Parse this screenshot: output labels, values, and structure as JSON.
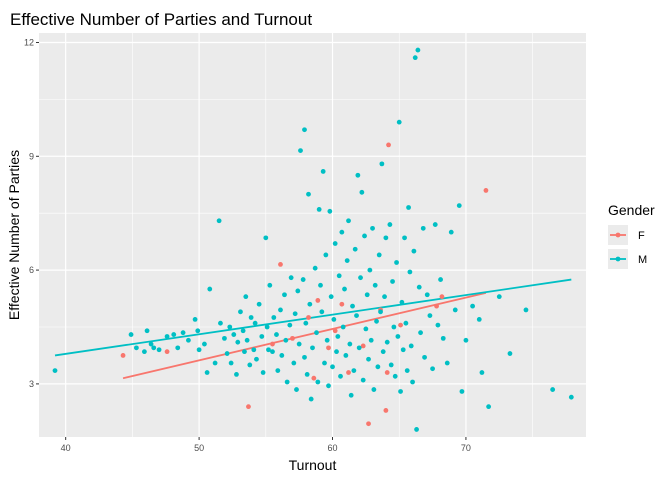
{
  "chart_data": {
    "type": "scatter",
    "title": "Effective Number of Parties and Turnout",
    "xlabel": "Turnout",
    "ylabel": "Effective Number of Parties",
    "xlim": [
      38,
      79
    ],
    "ylim": [
      1.6,
      12.25
    ],
    "x_ticks": [
      40,
      50,
      60,
      70
    ],
    "y_ticks": [
      3,
      6,
      9,
      12
    ],
    "grid": true,
    "legend": {
      "title": "Gender",
      "position": "right"
    },
    "series": [
      {
        "name": "F",
        "color": "#F8766D",
        "points": [
          [
            44.3,
            3.75
          ],
          [
            47.6,
            3.85
          ],
          [
            53.7,
            2.4
          ],
          [
            55.5,
            4.05
          ],
          [
            56.1,
            6.15
          ],
          [
            57.0,
            4.2
          ],
          [
            58.2,
            4.75
          ],
          [
            58.6,
            3.15
          ],
          [
            58.9,
            5.2
          ],
          [
            59.7,
            3.95
          ],
          [
            60.2,
            4.4
          ],
          [
            60.7,
            5.1
          ],
          [
            61.2,
            3.3
          ],
          [
            62.3,
            4.0
          ],
          [
            62.7,
            1.95
          ],
          [
            63.6,
            4.95
          ],
          [
            64.0,
            2.3
          ],
          [
            64.1,
            3.3
          ],
          [
            64.2,
            9.3
          ],
          [
            65.1,
            4.55
          ],
          [
            67.8,
            5.05
          ],
          [
            68.2,
            5.3
          ],
          [
            71.5,
            8.1
          ]
        ],
        "trend": [
          [
            44.3,
            3.15
          ],
          [
            71.5,
            5.4
          ]
        ]
      },
      {
        "name": "M",
        "color": "#00BFC4",
        "points": [
          [
            39.2,
            3.35
          ],
          [
            44.9,
            4.3
          ],
          [
            45.3,
            3.95
          ],
          [
            45.9,
            3.85
          ],
          [
            46.1,
            4.4
          ],
          [
            46.4,
            4.05
          ],
          [
            46.6,
            3.95
          ],
          [
            47.0,
            3.9
          ],
          [
            47.6,
            4.25
          ],
          [
            48.1,
            4.3
          ],
          [
            48.4,
            3.95
          ],
          [
            48.8,
            4.35
          ],
          [
            49.2,
            4.15
          ],
          [
            49.7,
            4.7
          ],
          [
            49.9,
            4.4
          ],
          [
            50.0,
            3.9
          ],
          [
            50.4,
            4.05
          ],
          [
            50.6,
            3.3
          ],
          [
            50.8,
            5.5
          ],
          [
            51.2,
            3.55
          ],
          [
            51.5,
            7.3
          ],
          [
            51.6,
            4.6
          ],
          [
            51.9,
            4.2
          ],
          [
            52.1,
            3.8
          ],
          [
            52.3,
            4.5
          ],
          [
            52.4,
            3.55
          ],
          [
            52.6,
            4.3
          ],
          [
            52.8,
            3.25
          ],
          [
            52.9,
            4.1
          ],
          [
            53.1,
            4.9
          ],
          [
            53.3,
            4.4
          ],
          [
            53.4,
            3.85
          ],
          [
            53.5,
            5.3
          ],
          [
            53.6,
            4.15
          ],
          [
            53.8,
            3.5
          ],
          [
            53.9,
            4.75
          ],
          [
            54.1,
            3.9
          ],
          [
            54.2,
            4.6
          ],
          [
            54.3,
            3.65
          ],
          [
            54.5,
            5.1
          ],
          [
            54.7,
            4.25
          ],
          [
            54.8,
            3.3
          ],
          [
            55.0,
            6.85
          ],
          [
            55.1,
            4.5
          ],
          [
            55.2,
            3.9
          ],
          [
            55.3,
            5.6
          ],
          [
            55.5,
            3.85
          ],
          [
            55.6,
            4.75
          ],
          [
            55.8,
            4.3
          ],
          [
            55.9,
            3.35
          ],
          [
            56.1,
            4.95
          ],
          [
            56.2,
            3.75
          ],
          [
            56.4,
            5.35
          ],
          [
            56.5,
            4.15
          ],
          [
            56.6,
            3.05
          ],
          [
            56.8,
            4.55
          ],
          [
            56.9,
            5.8
          ],
          [
            57.1,
            3.55
          ],
          [
            57.2,
            4.85
          ],
          [
            57.3,
            2.85
          ],
          [
            57.4,
            5.45
          ],
          [
            57.5,
            4.05
          ],
          [
            57.6,
            9.15
          ],
          [
            57.8,
            5.75
          ],
          [
            57.9,
            9.7
          ],
          [
            57.9,
            3.7
          ],
          [
            58.0,
            4.6
          ],
          [
            58.1,
            3.25
          ],
          [
            58.2,
            8.0
          ],
          [
            58.3,
            5.1
          ],
          [
            58.4,
            2.6
          ],
          [
            58.5,
            3.95
          ],
          [
            58.7,
            6.05
          ],
          [
            58.8,
            4.35
          ],
          [
            58.9,
            3.05
          ],
          [
            59.0,
            7.6
          ],
          [
            59.1,
            5.6
          ],
          [
            59.2,
            4.9
          ],
          [
            59.3,
            8.6
          ],
          [
            59.4,
            3.55
          ],
          [
            59.5,
            6.4
          ],
          [
            59.6,
            4.15
          ],
          [
            59.7,
            2.95
          ],
          [
            59.8,
            7.55
          ],
          [
            59.9,
            5.3
          ],
          [
            60.0,
            3.45
          ],
          [
            60.1,
            4.7
          ],
          [
            60.2,
            6.7
          ],
          [
            60.3,
            3.85
          ],
          [
            60.4,
            4.25
          ],
          [
            60.5,
            5.85
          ],
          [
            60.6,
            3.2
          ],
          [
            60.7,
            7.0
          ],
          [
            60.8,
            4.5
          ],
          [
            60.9,
            5.5
          ],
          [
            61.0,
            3.75
          ],
          [
            61.1,
            6.25
          ],
          [
            61.2,
            7.3
          ],
          [
            61.3,
            4.05
          ],
          [
            61.4,
            2.7
          ],
          [
            61.5,
            5.05
          ],
          [
            61.6,
            3.35
          ],
          [
            61.7,
            6.55
          ],
          [
            61.8,
            4.8
          ],
          [
            61.9,
            8.5
          ],
          [
            62.0,
            3.95
          ],
          [
            62.1,
            5.8
          ],
          [
            62.2,
            8.05
          ],
          [
            62.3,
            3.1
          ],
          [
            62.4,
            6.9
          ],
          [
            62.5,
            4.45
          ],
          [
            62.6,
            5.35
          ],
          [
            62.7,
            3.65
          ],
          [
            62.8,
            6.0
          ],
          [
            62.9,
            4.15
          ],
          [
            63.0,
            7.1
          ],
          [
            63.1,
            2.85
          ],
          [
            63.2,
            5.6
          ],
          [
            63.3,
            4.65
          ],
          [
            63.4,
            3.45
          ],
          [
            63.5,
            6.4
          ],
          [
            63.6,
            4.9
          ],
          [
            63.7,
            8.8
          ],
          [
            63.8,
            3.85
          ],
          [
            63.9,
            5.3
          ],
          [
            64.0,
            6.85
          ],
          [
            64.1,
            4.1
          ],
          [
            64.3,
            7.2
          ],
          [
            64.4,
            3.5
          ],
          [
            64.5,
            5.7
          ],
          [
            64.6,
            4.5
          ],
          [
            64.7,
            3.2
          ],
          [
            64.8,
            6.2
          ],
          [
            64.9,
            4.25
          ],
          [
            65.0,
            9.9
          ],
          [
            65.1,
            2.8
          ],
          [
            65.2,
            5.15
          ],
          [
            65.3,
            3.9
          ],
          [
            65.4,
            6.85
          ],
          [
            65.5,
            4.6
          ],
          [
            65.6,
            3.35
          ],
          [
            65.7,
            7.65
          ],
          [
            65.8,
            5.95
          ],
          [
            65.9,
            4.0
          ],
          [
            66.0,
            3.05
          ],
          [
            66.1,
            6.5
          ],
          [
            66.2,
            11.6
          ],
          [
            66.3,
            1.8
          ],
          [
            66.4,
            11.8
          ],
          [
            66.5,
            5.55
          ],
          [
            66.6,
            4.35
          ],
          [
            66.8,
            7.1
          ],
          [
            66.9,
            3.7
          ],
          [
            67.1,
            5.35
          ],
          [
            67.3,
            4.8
          ],
          [
            67.5,
            3.4
          ],
          [
            67.7,
            7.2
          ],
          [
            67.9,
            4.55
          ],
          [
            68.1,
            5.75
          ],
          [
            68.3,
            4.2
          ],
          [
            68.6,
            3.55
          ],
          [
            68.9,
            7.0
          ],
          [
            69.2,
            4.95
          ],
          [
            69.5,
            7.7
          ],
          [
            69.7,
            2.8
          ],
          [
            70.0,
            4.15
          ],
          [
            70.5,
            5.05
          ],
          [
            71.0,
            4.7
          ],
          [
            71.2,
            3.3
          ],
          [
            71.7,
            2.4
          ],
          [
            72.5,
            5.3
          ],
          [
            73.3,
            3.8
          ],
          [
            74.5,
            4.95
          ],
          [
            76.5,
            2.85
          ],
          [
            77.9,
            2.65
          ]
        ],
        "trend": [
          [
            39.2,
            3.75
          ],
          [
            77.9,
            5.75
          ]
        ]
      }
    ]
  }
}
